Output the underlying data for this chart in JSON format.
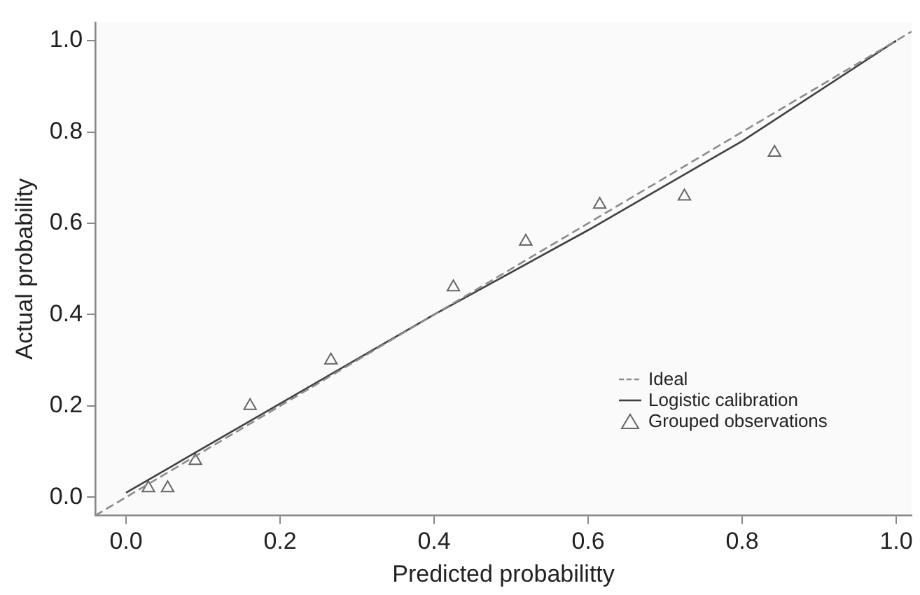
{
  "chart_data": {
    "type": "scatter",
    "xlabel": "Predicted probabilitty",
    "ylabel": "Actual probability",
    "xlim": [
      -0.04,
      1.02
    ],
    "ylim": [
      -0.04,
      1.04
    ],
    "xticks": [
      {
        "value": 0,
        "label": "0.0"
      },
      {
        "value": 0.2,
        "label": "0.2"
      },
      {
        "value": 0.4,
        "label": "0.4"
      },
      {
        "value": 0.6,
        "label": "0.6"
      },
      {
        "value": 0.8,
        "label": "0.8"
      },
      {
        "value": 1,
        "label": "1.0"
      }
    ],
    "yticks": [
      {
        "value": 0,
        "label": "0.0"
      },
      {
        "value": 0.2,
        "label": "0.2"
      },
      {
        "value": 0.4,
        "label": "0.4"
      },
      {
        "value": 0.6,
        "label": "0.6"
      },
      {
        "value": 0.8,
        "label": "0.8"
      },
      {
        "value": 1,
        "label": "1.0"
      }
    ],
    "grid": false,
    "legend": "bottom right",
    "series": [
      {
        "name": "Ideal",
        "type": "line",
        "line_style": "dashed",
        "marker": "none",
        "color": "#8c8c8c",
        "x": [
          -0.04,
          1.02
        ],
        "values": [
          -0.04,
          1.02
        ]
      },
      {
        "name": "Logistic calibration",
        "type": "line",
        "line_style": "solid",
        "marker": "none",
        "color": "#404040",
        "x": [
          0,
          0.2,
          0.4,
          0.6,
          0.8,
          1.0
        ],
        "values": [
          0.01,
          0.205,
          0.4,
          0.585,
          0.78,
          1.0
        ]
      },
      {
        "name": "Grouped observations",
        "type": "scatter",
        "marker": "triangle",
        "color": "#666666",
        "x": [
          0.029,
          0.054,
          0.09,
          0.161,
          0.266,
          0.425,
          0.519,
          0.615,
          0.725,
          0.842
        ],
        "values": [
          0.02,
          0.02,
          0.08,
          0.2,
          0.3,
          0.46,
          0.56,
          0.641,
          0.659,
          0.755
        ]
      }
    ]
  }
}
